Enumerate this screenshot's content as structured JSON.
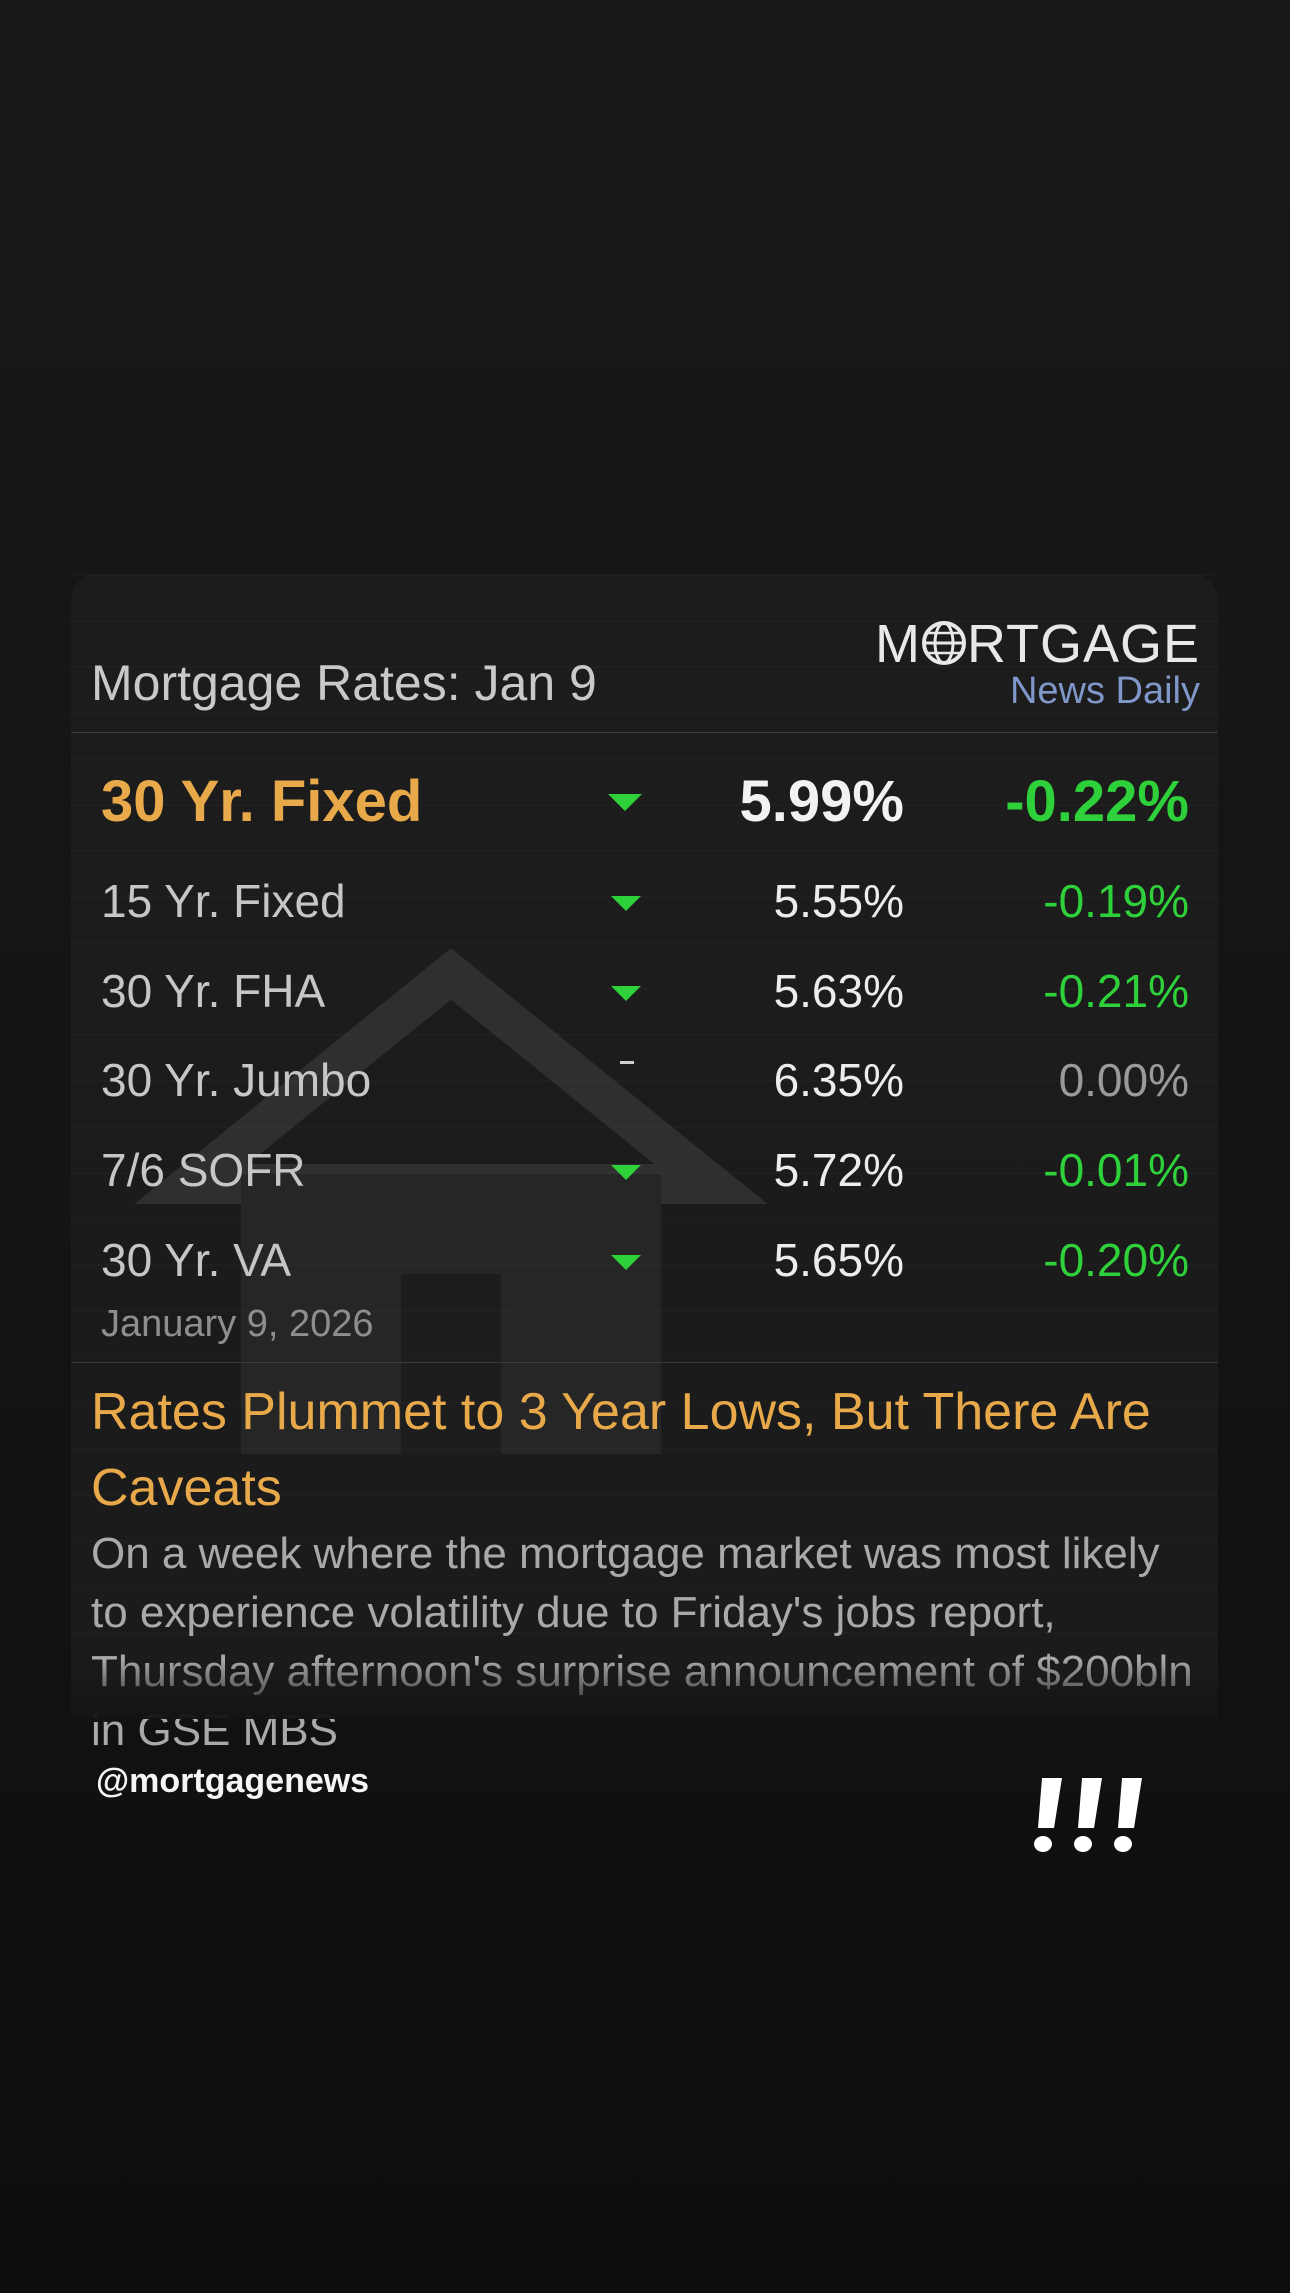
{
  "header": {
    "title": "Mortgage Rates: Jan 9",
    "logo_main": "MORTGAGE",
    "logo_sub": "News Daily"
  },
  "rates": [
    {
      "name": "30 Yr. Fixed",
      "value": "5.99%",
      "change": "-0.22%",
      "direction": "down",
      "featured": true
    },
    {
      "name": "15 Yr. Fixed",
      "value": "5.55%",
      "change": "-0.19%",
      "direction": "down"
    },
    {
      "name": "30 Yr. FHA",
      "value": "5.63%",
      "change": "-0.21%",
      "direction": "down"
    },
    {
      "name": "30 Yr. Jumbo",
      "value": "6.35%",
      "change": "0.00%",
      "direction": "flat"
    },
    {
      "name": "7/6 SOFR",
      "value": "5.72%",
      "change": "-0.01%",
      "direction": "down"
    },
    {
      "name": "30 Yr. VA",
      "value": "5.65%",
      "change": "-0.20%",
      "direction": "down"
    }
  ],
  "date": "January 9, 2026",
  "article": {
    "headline": "Rates Plummet to 3 Year Lows, But There Are Caveats",
    "summary": "On a week where the mortgage market was most likely to experience volatility due to Friday's jobs report, Thursday afternoon's surprise announcement of $200bln in GSE MBS"
  },
  "footer": {
    "handle": "@mortgagenews"
  },
  "colors": {
    "accent": "#e8a94a",
    "down": "#2fd13a",
    "flat": "#9a9a9a",
    "logo_sub": "#7f97c9"
  }
}
